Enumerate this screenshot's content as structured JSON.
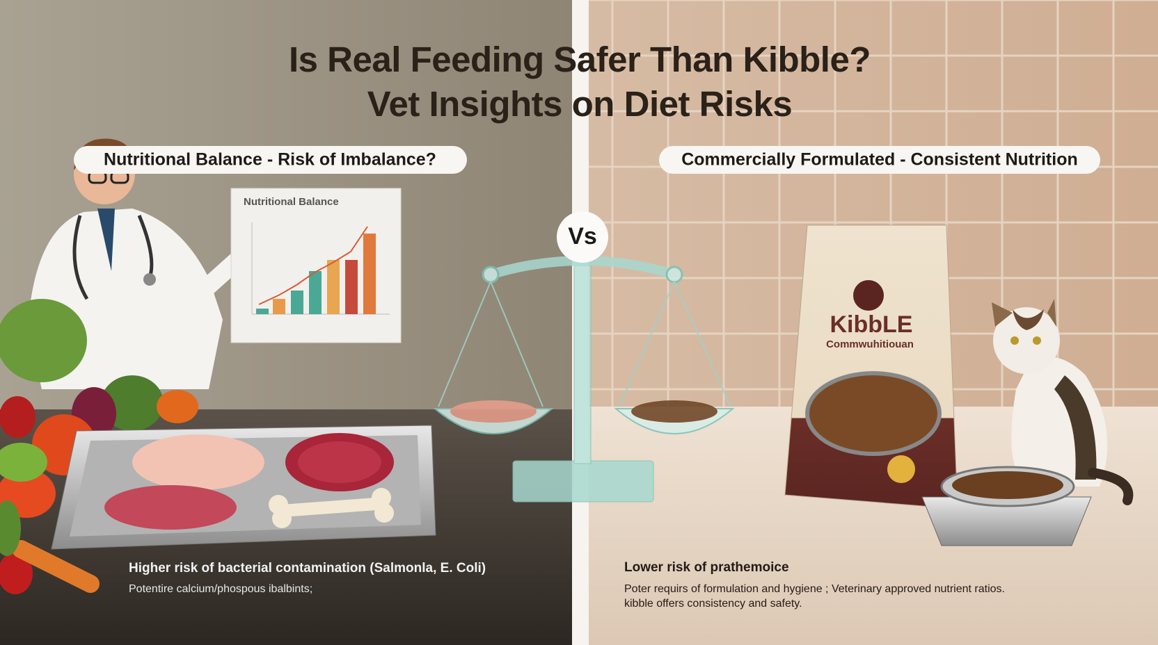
{
  "title": {
    "line1": "Is Real Feeding Safer Than Kibble?",
    "line2": "Vet Insights on Diet Risks"
  },
  "vs": "Vs",
  "left": {
    "label": "Nutritional Balance - Risk of Imbalance?",
    "chart_title": "Nutritional Balance",
    "notes": [
      "Higher risk of bacterial contamination (Salmonla, E. Coli)",
      "Potentire calcium/phospous ibalbints;"
    ]
  },
  "right": {
    "label": "Commercially Formulated - Consistent Nutrition",
    "bag_brand": "KibbLE",
    "bag_subtitle": "Commwuhitiouan",
    "notes": [
      "Lower risk of prathemoice",
      "Poter requirs of formulation and hygiene ; Veterinary approved nutrient ratios.",
      "kibble offers consistency and safety."
    ]
  }
}
